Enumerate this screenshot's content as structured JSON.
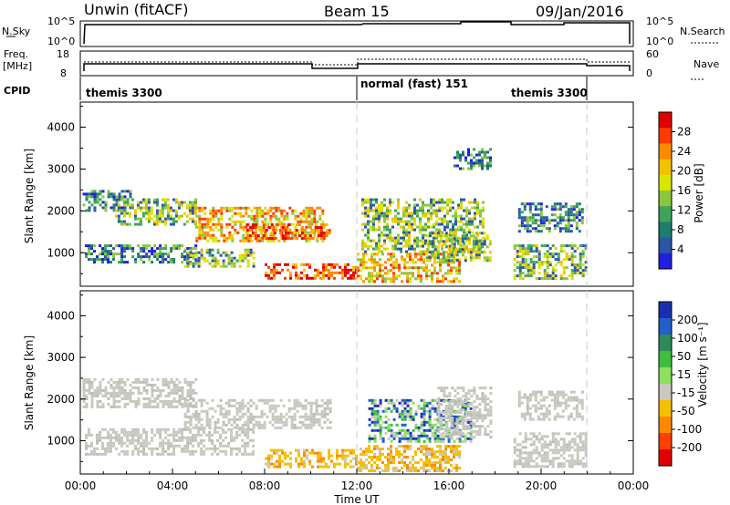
{
  "header": {
    "station": "Unwin (fitACF)",
    "beam": "Beam 15",
    "date": "09/Jan/2016"
  },
  "panels": {
    "nsky_label": "N.Sky",
    "nsky_ticks": [
      "10^5",
      "10^0"
    ],
    "nsearch_label": "N.Search",
    "nsearch_ticks": [
      "10^5",
      "10^0"
    ],
    "freq_label": "Freq.",
    "freq_unit": "[MHz]",
    "freq_ticks": [
      "18",
      "8"
    ],
    "nave_label": "Nave",
    "nave_ticks": [
      "60",
      "0"
    ],
    "cpid_label": "CPID",
    "cpid_modes": [
      {
        "label": "themis 3300",
        "start_h": 0,
        "end_h": 12
      },
      {
        "label": "normal (fast) 151",
        "start_h": 12,
        "end_h": 22
      },
      {
        "label": "themis 3300",
        "start_h": 22,
        "end_h": 24
      }
    ]
  },
  "chart_data": [
    {
      "type": "heatmap",
      "name": "power",
      "xlabel": "",
      "ylabel": "Slant Range [km]",
      "ylim": [
        200,
        4600
      ],
      "xlim_hours": [
        0,
        24
      ],
      "yticks": [
        "4000",
        "3000",
        "2000",
        "1000"
      ],
      "colorbar": {
        "label": "Power [dB]",
        "ticks": [
          "28",
          "24",
          "20",
          "16",
          "12",
          "8",
          "4"
        ],
        "colors": [
          "#e10000",
          "#ff3a00",
          "#ff8a00",
          "#f2c200",
          "#d8e600",
          "#8cc63f",
          "#3fa45a",
          "#1f7d6e",
          "#2b56a6",
          "#2020e0"
        ]
      },
      "echo_regions": [
        {
          "t0": 0.1,
          "t1": 2.2,
          "r0": 2000,
          "r1": 2500,
          "level": "low"
        },
        {
          "t0": 1.5,
          "t1": 5.0,
          "r0": 1700,
          "r1": 2300,
          "level": "mid"
        },
        {
          "t0": 5.0,
          "t1": 10.5,
          "r0": 1300,
          "r1": 2100,
          "level": "high"
        },
        {
          "t0": 7.2,
          "t1": 10.8,
          "r0": 1350,
          "r1": 1700,
          "level": "max"
        },
        {
          "t0": 0.2,
          "t1": 5.0,
          "r0": 800,
          "r1": 1200,
          "level": "low"
        },
        {
          "t0": 4.5,
          "t1": 7.5,
          "r0": 700,
          "r1": 1100,
          "level": "mid"
        },
        {
          "t0": 8.0,
          "t1": 12.0,
          "r0": 400,
          "r1": 750,
          "level": "max"
        },
        {
          "t0": 12.0,
          "t1": 16.5,
          "r0": 300,
          "r1": 1000,
          "level": "high"
        },
        {
          "t0": 12.2,
          "t1": 17.5,
          "r0": 1000,
          "r1": 2300,
          "level": "mid"
        },
        {
          "t0": 15.0,
          "t1": 17.8,
          "r0": 800,
          "r1": 1500,
          "level": "mid"
        },
        {
          "t0": 18.8,
          "t1": 21.9,
          "r0": 400,
          "r1": 1200,
          "level": "mid"
        },
        {
          "t0": 19.0,
          "t1": 21.8,
          "r0": 1500,
          "r1": 2200,
          "level": "low"
        },
        {
          "t0": 16.2,
          "t1": 17.8,
          "r0": 3000,
          "r1": 3500,
          "level": "low"
        }
      ]
    },
    {
      "type": "heatmap",
      "name": "velocity",
      "xlabel": "Time UT",
      "ylabel": "Slant Range [km]",
      "ylim": [
        200,
        4600
      ],
      "xlim_hours": [
        0,
        24
      ],
      "xticks": [
        "00:00",
        "04:00",
        "08:00",
        "12:00",
        "16:00",
        "20:00",
        "00:00"
      ],
      "yticks": [
        "4000",
        "3000",
        "2000",
        "1000"
      ],
      "colorbar": {
        "label": "Velocity [m s⁻¹]",
        "ticks": [
          "200",
          "100",
          "50",
          "15",
          "-15",
          "-50",
          "-100",
          "-200"
        ],
        "colors": [
          "#1a2fb0",
          "#2060c8",
          "#2e8b57",
          "#3fbf3f",
          "#8fe060",
          "#c8c8c0",
          "#f5c000",
          "#ff8a00",
          "#ff4000",
          "#e00000"
        ]
      },
      "echo_regions": [
        {
          "t0": 0.1,
          "t1": 5.0,
          "r0": 1800,
          "r1": 2500,
          "level": "ground"
        },
        {
          "t0": 4.5,
          "t1": 10.8,
          "r0": 1300,
          "r1": 2000,
          "level": "ground"
        },
        {
          "t0": 0.2,
          "t1": 7.5,
          "r0": 700,
          "r1": 1300,
          "level": "ground"
        },
        {
          "t0": 8.0,
          "t1": 12.0,
          "r0": 400,
          "r1": 800,
          "level": "negative"
        },
        {
          "t0": 12.0,
          "t1": 16.5,
          "r0": 300,
          "r1": 900,
          "level": "negative"
        },
        {
          "t0": 12.5,
          "t1": 17.0,
          "r0": 1000,
          "r1": 2000,
          "level": "positive"
        },
        {
          "t0": 15.5,
          "t1": 17.8,
          "r0": 1100,
          "r1": 2300,
          "level": "ground"
        },
        {
          "t0": 18.8,
          "t1": 21.9,
          "r0": 400,
          "r1": 1200,
          "level": "ground"
        },
        {
          "t0": 19.0,
          "t1": 21.8,
          "r0": 1500,
          "r1": 2200,
          "level": "ground"
        }
      ]
    }
  ]
}
